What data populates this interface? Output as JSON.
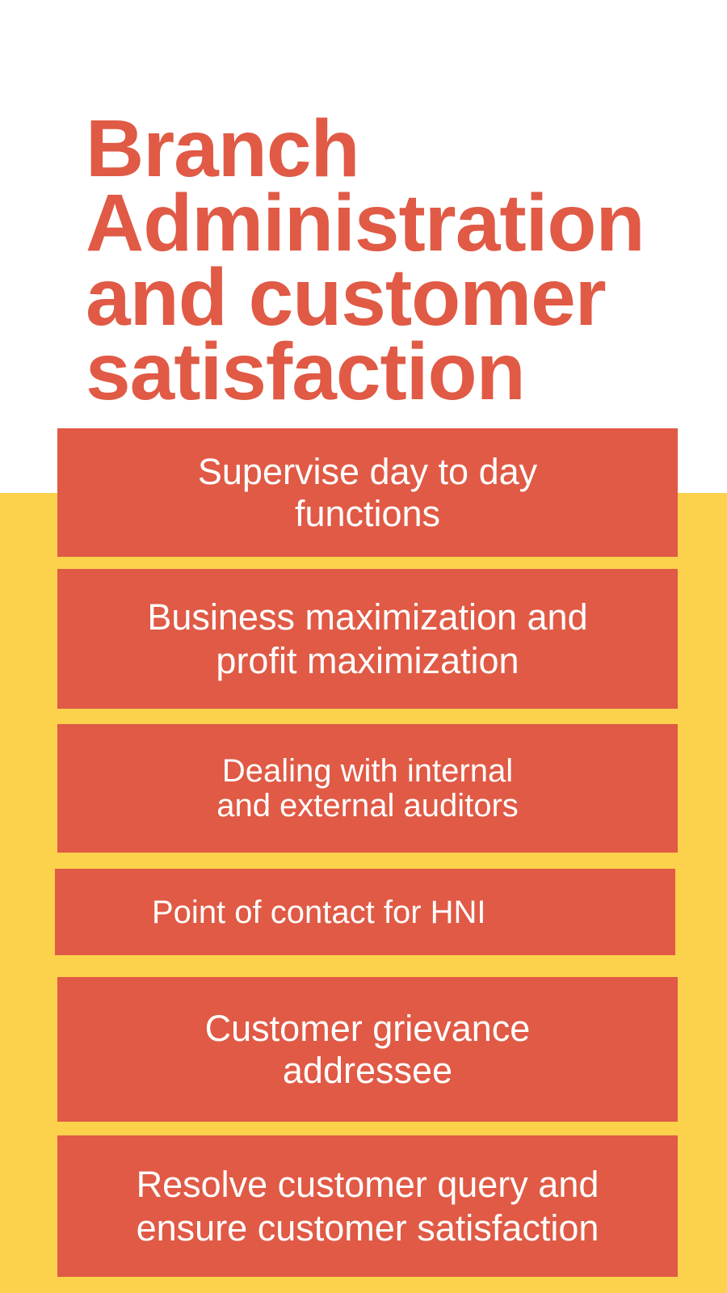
{
  "title": {
    "lines": [
      "Branch",
      "Administration",
      "and customer",
      "satisfaction"
    ]
  },
  "cards": [
    {
      "lines": [
        "Supervise day to day",
        "functions"
      ]
    },
    {
      "lines": [
        "Business maximization and",
        "profit maximization"
      ]
    },
    {
      "lines": [
        "Dealing with internal",
        "and external auditors"
      ]
    },
    {
      "lines": [
        "Point of contact for HNI"
      ]
    },
    {
      "lines": [
        "Customer grievance",
        "addressee"
      ]
    },
    {
      "lines": [
        "Resolve customer query and",
        "ensure customer satisfaction"
      ]
    }
  ],
  "colors": {
    "accent": "#E05A45",
    "background_band": "#FCD24D",
    "page": "#FFFFFF",
    "card_text": "#FFFFFF"
  }
}
